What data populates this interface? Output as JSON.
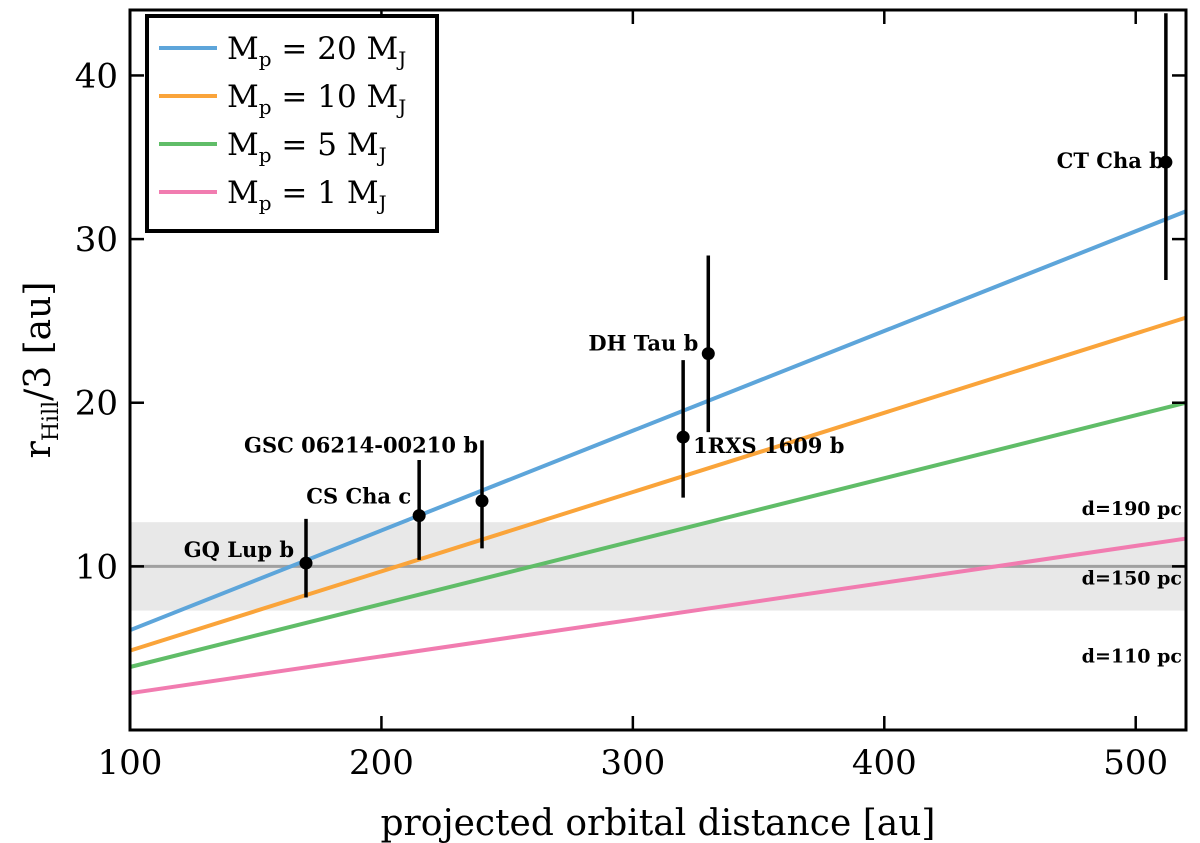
{
  "chart_data": {
    "type": "line",
    "xlabel": "projected orbital distance [au]",
    "ylabel": {
      "main": "r",
      "sub": "Hill",
      "rest": "/3 [au]"
    },
    "xlim": [
      100,
      520
    ],
    "ylim": [
      0,
      44
    ],
    "xticks": [
      100,
      200,
      300,
      400,
      500
    ],
    "yticks": [
      10,
      20,
      30,
      40
    ],
    "x": [
      100,
      520
    ],
    "series": [
      {
        "name": "Mp = 20 MJ",
        "mass": "20",
        "color": "#5da5da",
        "values": [
          6.1,
          31.7
        ]
      },
      {
        "name": "Mp = 10 MJ",
        "mass": "10",
        "color": "#faa43a",
        "values": [
          4.85,
          25.2
        ]
      },
      {
        "name": "Mp = 5 MJ",
        "mass": "5",
        "color": "#60bd68",
        "values": [
          3.85,
          20.0
        ]
      },
      {
        "name": "Mp = 1 MJ",
        "mass": "1",
        "color": "#f17cb0",
        "values": [
          2.25,
          11.7
        ]
      }
    ],
    "legend": {
      "position": "top-left",
      "label_prefix": "M",
      "label_sub": "p",
      "label_eq": " = ",
      "unit": "M",
      "unit_sub": "J"
    },
    "points": [
      {
        "label": "GQ Lup b",
        "x": 170,
        "y": 10.2,
        "yerr_low": 8.1,
        "yerr_high": 12.9
      },
      {
        "label": "CS Cha c",
        "x": 215,
        "y": 13.1,
        "yerr_low": 10.4,
        "yerr_high": 16.5
      },
      {
        "label": "GSC 06214-00210 b",
        "x": 240,
        "y": 14.0,
        "yerr_low": 11.1,
        "yerr_high": 17.7
      },
      {
        "label": "1RXS 1609 b",
        "x": 320,
        "y": 17.9,
        "yerr_low": 14.2,
        "yerr_high": 22.6
      },
      {
        "label": "DH Tau b",
        "x": 330,
        "y": 23.0,
        "yerr_low": 18.2,
        "yerr_high": 29.0
      },
      {
        "label": "CT Cha b",
        "x": 512,
        "y": 34.7,
        "yerr_low": 27.5,
        "yerr_high": 43.8
      }
    ],
    "distance_band": {
      "low": 7.3,
      "mid": 10.0,
      "high": 12.7,
      "color": "#e8e8e8",
      "line_color": "#a0a0a0"
    },
    "distance_labels": [
      {
        "text": "d=190 pc",
        "y": 12.7
      },
      {
        "text": "d=150 pc",
        "y": 10.0
      },
      {
        "text": "d=110 pc",
        "y": 7.3
      }
    ]
  }
}
